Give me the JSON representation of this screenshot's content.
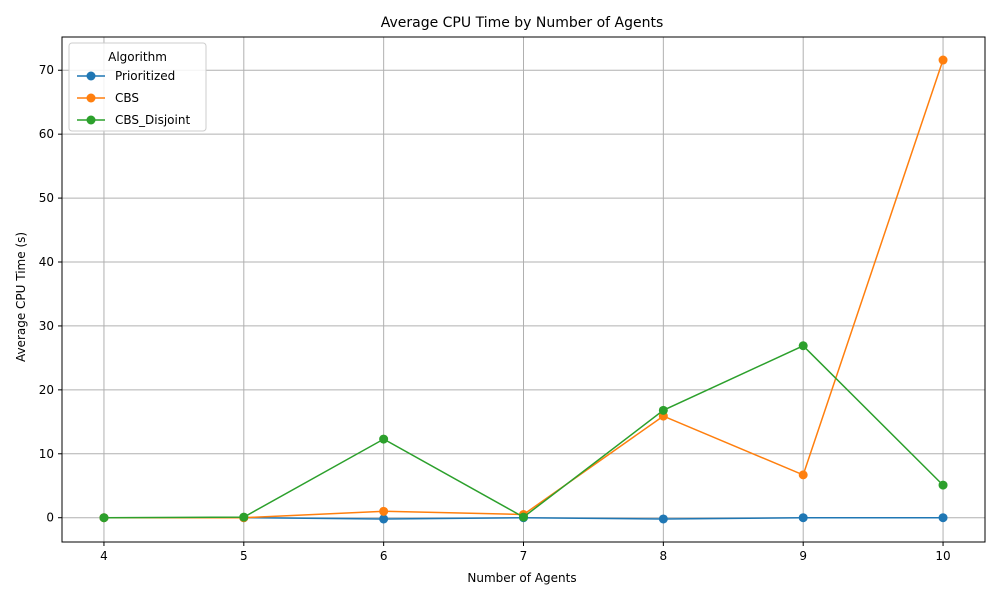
{
  "chart_data": {
    "type": "line",
    "title": "Average CPU Time by Number of Agents",
    "xlabel": "Number of Agents",
    "ylabel": "Average CPU Time (s)",
    "x": [
      4,
      5,
      6,
      7,
      8,
      9,
      10
    ],
    "xlim": [
      3.7,
      10.3
    ],
    "ylim": [
      -3.8,
      75.2
    ],
    "yticks": [
      0,
      10,
      20,
      30,
      40,
      50,
      60,
      70
    ],
    "grid": true,
    "legend": {
      "title": "Algorithm",
      "placement": "top-left"
    },
    "series": [
      {
        "name": "Prioritized",
        "color": "#1f77b4",
        "values": [
          0.0,
          0.0,
          -0.2,
          0.0,
          -0.2,
          0.0,
          0.0
        ]
      },
      {
        "name": "CBS",
        "color": "#ff7f0e",
        "values": [
          0.0,
          0.0,
          1.0,
          0.5,
          15.9,
          6.7,
          71.6
        ]
      },
      {
        "name": "CBS_Disjoint",
        "color": "#2ca02c",
        "values": [
          0.0,
          0.1,
          12.3,
          0.1,
          16.8,
          26.9,
          5.1
        ]
      }
    ]
  }
}
